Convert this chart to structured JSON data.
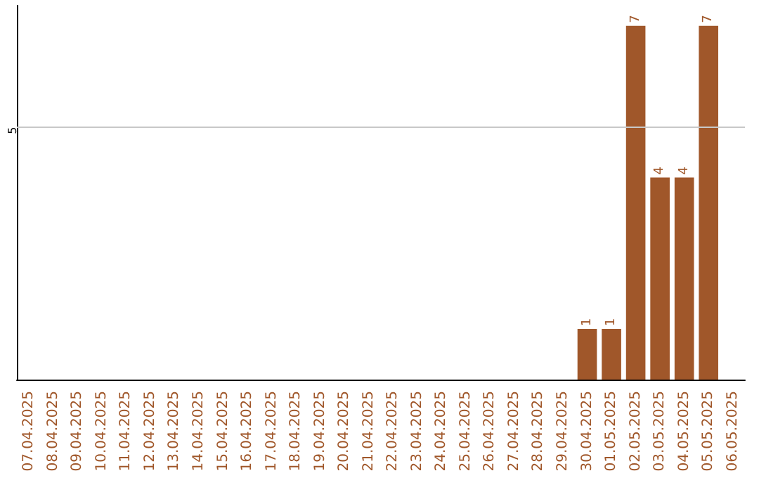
{
  "chart_data": {
    "type": "bar",
    "categories": [
      "07.04.2025",
      "08.04.2025",
      "09.04.2025",
      "10.04.2025",
      "11.04.2025",
      "12.04.2025",
      "13.04.2025",
      "14.04.2025",
      "15.04.2025",
      "16.04.2025",
      "17.04.2025",
      "18.04.2025",
      "19.04.2025",
      "20.04.2025",
      "21.04.2025",
      "22.04.2025",
      "23.04.2025",
      "24.04.2025",
      "25.04.2025",
      "26.04.2025",
      "27.04.2025",
      "28.04.2025",
      "29.04.2025",
      "30.04.2025",
      "01.05.2025",
      "02.05.2025",
      "03.05.2025",
      "04.05.2025",
      "05.05.2025",
      "06.05.2025"
    ],
    "values": [
      null,
      null,
      null,
      null,
      null,
      null,
      null,
      null,
      null,
      null,
      null,
      null,
      null,
      null,
      null,
      null,
      null,
      null,
      null,
      null,
      null,
      null,
      null,
      1,
      1,
      7,
      4,
      4,
      7,
      null
    ],
    "data_labels": true,
    "color": "#a0572a",
    "ylim": [
      0,
      7.4
    ],
    "ref_lines": [
      {
        "axis": "y",
        "value": 5,
        "label": "5",
        "color": "#c8c8c8"
      }
    ]
  }
}
